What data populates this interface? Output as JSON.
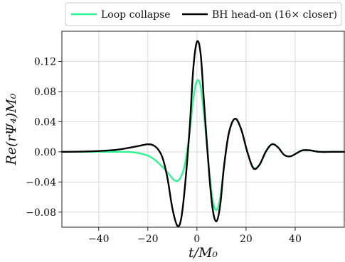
{
  "chart_data": {
    "type": "line",
    "title": "",
    "xlabel": "t/M₀",
    "ylabel": "Re(rΨ₄)M₀",
    "xlim": [
      -55,
      60
    ],
    "ylim": [
      -0.1,
      0.16
    ],
    "xticks": [
      -40,
      -20,
      0,
      20,
      40
    ],
    "xtick_labels": [
      "−40",
      "−20",
      "0",
      "20",
      "40"
    ],
    "yticks": [
      -0.08,
      -0.04,
      0.0,
      0.04,
      0.08,
      0.12
    ],
    "ytick_labels": [
      "−0.08",
      "−0.04",
      "0.00",
      "0.04",
      "0.08",
      "0.12"
    ],
    "grid": true,
    "legend_position": "top-center outside",
    "series": [
      {
        "name": "Loop collapse",
        "color": "#2ef58f",
        "x": [
          -55,
          -40,
          -30,
          -25,
          -20,
          -17,
          -14,
          -11,
          -9,
          -7,
          -5,
          -3,
          -1.5,
          0,
          1.5,
          3,
          5,
          6.5,
          8,
          9.5,
          11,
          13,
          15.5,
          18,
          20.5,
          23,
          25.5,
          28,
          30.5,
          33,
          35.5,
          38,
          40.5,
          43,
          46,
          50,
          55,
          60
        ],
        "y": [
          0.0,
          0.0,
          0.0,
          -0.001,
          -0.005,
          -0.011,
          -0.02,
          -0.031,
          -0.038,
          -0.036,
          -0.018,
          0.025,
          0.07,
          0.094,
          0.087,
          0.045,
          -0.025,
          -0.066,
          -0.077,
          -0.06,
          -0.02,
          0.025,
          0.044,
          0.03,
          0.0,
          -0.021,
          -0.017,
          0.0,
          0.01,
          0.006,
          -0.004,
          -0.006,
          -0.002,
          0.002,
          0.002,
          0.0,
          0.0,
          0.0
        ]
      },
      {
        "name": "BH head-on (16× closer)",
        "color": "#000000",
        "x": [
          -55,
          -45,
          -35,
          -30,
          -25,
          -22,
          -20,
          -18,
          -16,
          -14,
          -12,
          -10,
          -8,
          -6.5,
          -5,
          -3,
          -1.5,
          0,
          1.5,
          3,
          5,
          6.5,
          8,
          9.5,
          11,
          13,
          15.5,
          18,
          20.5,
          23,
          25.5,
          28,
          30.5,
          33,
          35.5,
          38,
          40.5,
          43,
          46,
          50,
          55,
          60
        ],
        "y": [
          0.0,
          0.0005,
          0.002,
          0.004,
          0.007,
          0.009,
          0.01,
          0.009,
          0.004,
          -0.008,
          -0.035,
          -0.075,
          -0.098,
          -0.09,
          -0.05,
          0.03,
          0.11,
          0.146,
          0.13,
          0.06,
          -0.03,
          -0.078,
          -0.092,
          -0.07,
          -0.02,
          0.025,
          0.044,
          0.03,
          0.0,
          -0.022,
          -0.017,
          0.0,
          0.01,
          0.006,
          -0.004,
          -0.006,
          -0.002,
          0.002,
          0.002,
          0.0,
          0.0,
          0.0
        ]
      }
    ]
  }
}
